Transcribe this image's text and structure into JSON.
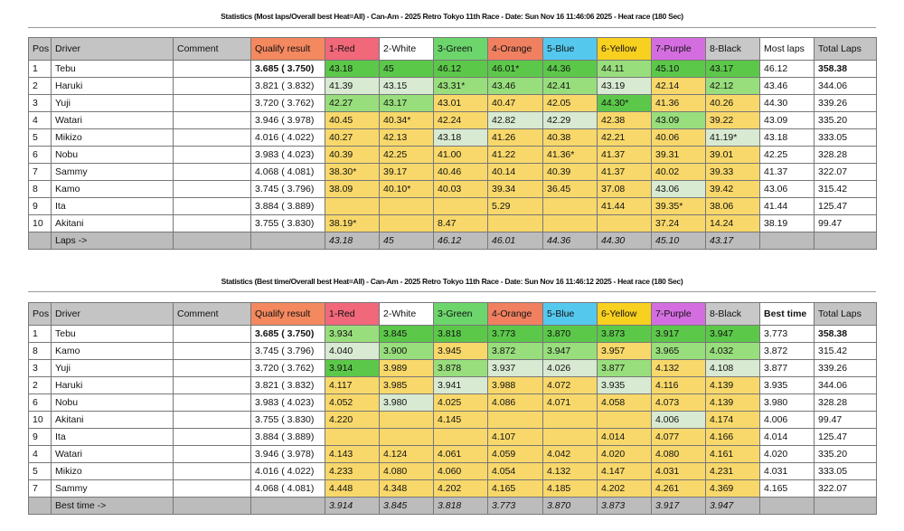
{
  "colors": {
    "header": "#c4c4c4",
    "qualify": "#f4885f",
    "1-Red": "#f0687a",
    "2-White": "#ffffff",
    "3-Green": "#6cd56c",
    "4-Orange": "#f08060",
    "5-Blue": "#55c8ee",
    "6-Yellow": "#f8d020",
    "7-Purple": "#d46ee0",
    "8-Black": "#c8c8c8",
    "best1": "#5cc84a",
    "best2": "#98de7c",
    "best3": "#d8ead2",
    "other": "#f8d86a"
  },
  "tables": [
    {
      "title": "Statistics (Most laps/Overall best Heat=All) - Can-Am - 2025 Retro Tokyo 11th Race - Date: Sun Nov 16 11:46:06 2025 - Heat race (180 Sec)",
      "headers": [
        "Pos",
        "Driver",
        "Comment",
        "Qualify result",
        "1-Red",
        "2-White",
        "3-Green",
        "4-Orange",
        "5-Blue",
        "6-Yellow",
        "7-Purple",
        "8-Black",
        "Most laps",
        "Total Laps"
      ],
      "rows": [
        {
          "pos": "1",
          "driver": "Tebu",
          "comment": "",
          "qualify": "3.685 ( 3.750)",
          "cells": [
            "43.18",
            "45",
            "46.12",
            "46.01*",
            "44.36",
            "44.11",
            "45.10",
            "43.17"
          ],
          "rank": [
            "g1",
            "g1",
            "g1",
            "g1",
            "g1",
            "g2",
            "g1",
            "g1"
          ],
          "best": "46.12",
          "total": "358.38"
        },
        {
          "pos": "2",
          "driver": "Haruki",
          "comment": "",
          "qualify": "3.821 ( 3.832)",
          "cells": [
            "41.39",
            "43.15",
            "43.31*",
            "43.46",
            "42.41",
            "43.19",
            "42.14",
            "42.12"
          ],
          "rank": [
            "g3",
            "g3",
            "g2",
            "g2",
            "g2",
            "g3",
            "y",
            "g2"
          ],
          "best": "43.46",
          "total": "344.06"
        },
        {
          "pos": "3",
          "driver": "Yuji",
          "comment": "",
          "qualify": "3.720 ( 3.762)",
          "cells": [
            "42.27",
            "43.17",
            "43.01",
            "40.47",
            "42.05",
            "44.30*",
            "41.36",
            "40.26"
          ],
          "rank": [
            "g2",
            "g2",
            "y",
            "y",
            "y",
            "g1",
            "y",
            "y"
          ],
          "best": "44.30",
          "total": "339.26"
        },
        {
          "pos": "4",
          "driver": "Watari",
          "comment": "",
          "qualify": "3.946 ( 3.978)",
          "cells": [
            "40.45",
            "40.34*",
            "42.24",
            "42.82",
            "42.29",
            "42.38",
            "43.09",
            "39.22"
          ],
          "rank": [
            "y",
            "y",
            "y",
            "g3",
            "g3",
            "y",
            "g2",
            "y"
          ],
          "best": "43.09",
          "total": "335.20"
        },
        {
          "pos": "5",
          "driver": "Mikizo",
          "comment": "",
          "qualify": "4.016 ( 4.022)",
          "cells": [
            "40.27",
            "42.13",
            "43.18",
            "41.26",
            "40.38",
            "42.21",
            "40.06",
            "41.19*"
          ],
          "rank": [
            "y",
            "y",
            "g3",
            "y",
            "y",
            "y",
            "y",
            "g3"
          ],
          "best": "43.18",
          "total": "333.05"
        },
        {
          "pos": "6",
          "driver": "Nobu",
          "comment": "",
          "qualify": "3.983 ( 4.023)",
          "cells": [
            "40.39",
            "42.25",
            "41.00",
            "41.22",
            "41.36*",
            "41.37",
            "39.31",
            "39.01"
          ],
          "rank": [
            "y",
            "y",
            "y",
            "y",
            "y",
            "y",
            "y",
            "y"
          ],
          "best": "42.25",
          "total": "328.28"
        },
        {
          "pos": "7",
          "driver": "Sammy",
          "comment": "",
          "qualify": "4.068 ( 4.081)",
          "cells": [
            "38.30*",
            "39.17",
            "40.46",
            "40.14",
            "40.39",
            "41.37",
            "40.02",
            "39.33"
          ],
          "rank": [
            "y",
            "y",
            "y",
            "y",
            "y",
            "y",
            "y",
            "y"
          ],
          "best": "41.37",
          "total": "322.07"
        },
        {
          "pos": "8",
          "driver": "Kamo",
          "comment": "",
          "qualify": "3.745 ( 3.796)",
          "cells": [
            "38.09",
            "40.10*",
            "40.03",
            "39.34",
            "36.45",
            "37.08",
            "43.06",
            "39.42"
          ],
          "rank": [
            "y",
            "y",
            "y",
            "y",
            "y",
            "y",
            "g3",
            "y"
          ],
          "best": "43.06",
          "total": "315.42"
        },
        {
          "pos": "9",
          "driver": "Ita",
          "comment": "",
          "qualify": "3.884 ( 3.889)",
          "cells": [
            "",
            "",
            "",
            "5.29",
            "",
            "41.44",
            "39.35*",
            "38.06"
          ],
          "rank": [
            "y",
            "y",
            "y",
            "y",
            "y",
            "y",
            "y",
            "y"
          ],
          "best": "41.44",
          "total": "125.47"
        },
        {
          "pos": "10",
          "driver": "Akitani",
          "comment": "",
          "qualify": "3.755 ( 3.830)",
          "cells": [
            "38.19*",
            "",
            "8.47",
            "",
            "",
            "",
            "37.24",
            "14.24"
          ],
          "rank": [
            "y",
            "y",
            "y",
            "y",
            "y",
            "y",
            "y",
            "y"
          ],
          "best": "38.19",
          "total": "99.47"
        }
      ],
      "footer_label": "Laps ->",
      "footer": [
        "43.18",
        "45",
        "46.12",
        "46.01",
        "44.36",
        "44.30",
        "45.10",
        "43.17"
      ]
    },
    {
      "title": "Statistics (Best time/Overall best Heat=All) - Can-Am - 2025 Retro Tokyo 11th Race - Date: Sun Nov 16 11:46:12 2025 - Heat race (180 Sec)",
      "headers": [
        "Pos",
        "Driver",
        "Comment",
        "Qualify result",
        "1-Red",
        "2-White",
        "3-Green",
        "4-Orange",
        "5-Blue",
        "6-Yellow",
        "7-Purple",
        "8-Black",
        "Best time",
        "Total Laps"
      ],
      "rows": [
        {
          "pos": "1",
          "driver": "Tebu",
          "comment": "",
          "qualify": "3.685 ( 3.750)",
          "cells": [
            "3.934",
            "3.845",
            "3.818",
            "3.773",
            "3.870",
            "3.873",
            "3.917",
            "3.947"
          ],
          "rank": [
            "g2",
            "g1",
            "g1",
            "g1",
            "g1",
            "g1",
            "g1",
            "g1"
          ],
          "best": "3.773",
          "total": "358.38"
        },
        {
          "pos": "8",
          "driver": "Kamo",
          "comment": "",
          "qualify": "3.745 ( 3.796)",
          "cells": [
            "4.040",
            "3.900",
            "3.945",
            "3.872",
            "3.947",
            "3.957",
            "3.965",
            "4.032"
          ],
          "rank": [
            "g3",
            "g2",
            "y",
            "g2",
            "g2",
            "y",
            "g2",
            "g2"
          ],
          "best": "3.872",
          "total": "315.42"
        },
        {
          "pos": "3",
          "driver": "Yuji",
          "comment": "",
          "qualify": "3.720 ( 3.762)",
          "cells": [
            "3.914",
            "3.989",
            "3.878",
            "3.937",
            "4.026",
            "3.877",
            "4.132",
            "4.108"
          ],
          "rank": [
            "g1",
            "y",
            "g2",
            "g3",
            "g3",
            "g2",
            "y",
            "g3"
          ],
          "best": "3.877",
          "total": "339.26"
        },
        {
          "pos": "2",
          "driver": "Haruki",
          "comment": "",
          "qualify": "3.821 ( 3.832)",
          "cells": [
            "4.117",
            "3.985",
            "3.941",
            "3.988",
            "4.072",
            "3.935",
            "4.116",
            "4.139"
          ],
          "rank": [
            "y",
            "y",
            "g3",
            "y",
            "y",
            "g3",
            "y",
            "y"
          ],
          "best": "3.935",
          "total": "344.06"
        },
        {
          "pos": "6",
          "driver": "Nobu",
          "comment": "",
          "qualify": "3.983 ( 4.023)",
          "cells": [
            "4.052",
            "3.980",
            "4.025",
            "4.086",
            "4.071",
            "4.058",
            "4.073",
            "4.139"
          ],
          "rank": [
            "y",
            "g3",
            "y",
            "y",
            "y",
            "y",
            "y",
            "y"
          ],
          "best": "3.980",
          "total": "328.28"
        },
        {
          "pos": "10",
          "driver": "Akitani",
          "comment": "",
          "qualify": "3.755 ( 3.830)",
          "cells": [
            "4.220",
            "",
            "4.145",
            "",
            "",
            "",
            "4.006",
            "4.174"
          ],
          "rank": [
            "y",
            "y",
            "y",
            "y",
            "y",
            "y",
            "g3",
            "y"
          ],
          "best": "4.006",
          "total": "99.47"
        },
        {
          "pos": "9",
          "driver": "Ita",
          "comment": "",
          "qualify": "3.884 ( 3.889)",
          "cells": [
            "",
            "",
            "",
            "4.107",
            "",
            "4.014",
            "4.077",
            "4.166"
          ],
          "rank": [
            "y",
            "y",
            "y",
            "y",
            "y",
            "y",
            "y",
            "y"
          ],
          "best": "4.014",
          "total": "125.47"
        },
        {
          "pos": "4",
          "driver": "Watari",
          "comment": "",
          "qualify": "3.946 ( 3.978)",
          "cells": [
            "4.143",
            "4.124",
            "4.061",
            "4.059",
            "4.042",
            "4.020",
            "4.080",
            "4.161"
          ],
          "rank": [
            "y",
            "y",
            "y",
            "y",
            "y",
            "y",
            "y",
            "y"
          ],
          "best": "4.020",
          "total": "335.20"
        },
        {
          "pos": "5",
          "driver": "Mikizo",
          "comment": "",
          "qualify": "4.016 ( 4.022)",
          "cells": [
            "4.233",
            "4.080",
            "4.060",
            "4.054",
            "4.132",
            "4.147",
            "4.031",
            "4.231"
          ],
          "rank": [
            "y",
            "y",
            "y",
            "y",
            "y",
            "y",
            "y",
            "y"
          ],
          "best": "4.031",
          "total": "333.05"
        },
        {
          "pos": "7",
          "driver": "Sammy",
          "comment": "",
          "qualify": "4.068 ( 4.081)",
          "cells": [
            "4.448",
            "4.348",
            "4.202",
            "4.165",
            "4.185",
            "4.202",
            "4.261",
            "4.369"
          ],
          "rank": [
            "y",
            "y",
            "y",
            "y",
            "y",
            "y",
            "y",
            "y"
          ],
          "best": "4.165",
          "total": "322.07"
        }
      ],
      "footer_label": "Best time ->",
      "footer": [
        "3.914",
        "3.845",
        "3.818",
        "3.773",
        "3.870",
        "3.873",
        "3.917",
        "3.947"
      ]
    }
  ]
}
